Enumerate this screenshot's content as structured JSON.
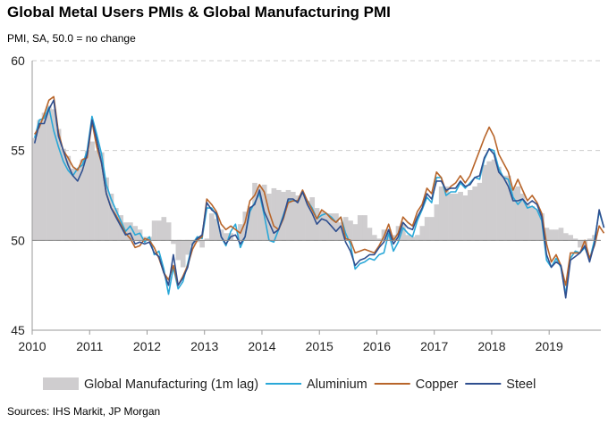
{
  "header": {
    "title": "Global Metal Users PMIs & Global Manufacturing PMI",
    "subtitle": "PMI, SA, 50.0 = no change"
  },
  "footer": {
    "source": "Sources: IHS Markit, JP Morgan"
  },
  "chart_data": {
    "type": "line",
    "title": "Global Metal Users PMIs & Global Manufacturing PMI",
    "ylabel": "PMI, SA, 50.0 = no change",
    "xlabel": "",
    "xlim": [
      2010.0,
      2019.9
    ],
    "ylim": [
      45,
      60
    ],
    "baseline": 50,
    "y_ticks": [
      "45",
      "50",
      "55",
      "60"
    ],
    "x_ticks": [
      "2010",
      "2011",
      "2012",
      "2013",
      "2014",
      "2015",
      "2016",
      "2017",
      "2018",
      "2019"
    ],
    "grid": "horizontal dashed",
    "legend_position": "bottom",
    "colors": {
      "Global Manufacturing (1m lag)": "#cfcdcf",
      "Aluminium": "#2aa8d8",
      "Copper": "#b8652a",
      "Steel": "#2f4f8f"
    },
    "bars": {
      "name": "Global Manufacturing (1m lag)",
      "x_start": 2010.0,
      "step": 0.0833,
      "values": [
        55.7,
        56.7,
        57.1,
        57.5,
        57.3,
        56.2,
        55.1,
        54.7,
        54.0,
        54.0,
        54.5,
        55.0,
        55.5,
        55.0,
        54.9,
        53.5,
        52.6,
        51.8,
        51.4,
        51.0,
        51.0,
        50.8,
        50.6,
        50.2,
        50.2,
        51.1,
        51.1,
        51.3,
        51.0,
        49.8,
        48.9,
        48.5,
        49.2,
        49.7,
        49.9,
        49.6,
        50.1,
        51.5,
        51.2,
        50.6,
        50.4,
        50.4,
        50.0,
        50.9,
        51.6,
        51.9,
        53.2,
        53.0,
        53.1,
        52.6,
        52.9,
        52.8,
        52.7,
        52.8,
        52.7,
        52.5,
        52.6,
        52.2,
        52.4,
        51.8,
        51.6,
        51.5,
        51.5,
        51.5,
        51.0,
        51.3,
        51.1,
        50.9,
        51.4,
        51.4,
        50.7,
        50.3,
        50.1,
        50.6,
        50.6,
        50.3,
        50.8,
        50.9,
        50.3,
        50.2,
        50.3,
        50.8,
        51.3,
        51.3,
        52.0,
        53.0,
        53.0,
        52.6,
        52.6,
        52.7,
        52.5,
        52.8,
        53.0,
        53.2,
        54.2,
        54.4,
        54.5,
        54.1,
        53.6,
        53.6,
        52.9,
        53.0,
        52.6,
        52.0,
        51.9,
        51.7,
        51.5,
        50.7,
        50.6,
        50.6,
        50.7,
        50.4,
        50.3,
        50.1,
        49.6,
        49.7,
        50.1,
        50.3
      ]
    },
    "series": [
      {
        "name": "Aluminium",
        "x_start": 2010.0,
        "step": 0.0833,
        "values": [
          55.7,
          56.7,
          56.8,
          57.4,
          56.1,
          55.2,
          54.4,
          53.9,
          53.6,
          54.0,
          54.2,
          55.0,
          56.9,
          55.9,
          54.8,
          53.1,
          52.3,
          51.7,
          51.1,
          50.5,
          50.8,
          50.3,
          50.4,
          49.9,
          50.2,
          49.2,
          49.4,
          48.4,
          47.0,
          48.5,
          47.3,
          47.7,
          48.7,
          49.8,
          50.2,
          50.1,
          51.8,
          51.8,
          51.4,
          50.2,
          49.7,
          50.5,
          50.9,
          49.6,
          50.2,
          51.6,
          52.1,
          52.6,
          51.4,
          50.0,
          49.9,
          50.6,
          51.4,
          52.2,
          52.2,
          52.2,
          52.7,
          52.2,
          51.8,
          51.2,
          51.4,
          51.5,
          51.3,
          51.0,
          51.3,
          50.4,
          49.8,
          48.4,
          48.7,
          48.8,
          49.0,
          48.9,
          49.2,
          49.3,
          50.4,
          49.4,
          49.9,
          50.7,
          50.4,
          50.2,
          51.1,
          51.7,
          52.4,
          52.1,
          53.5,
          53.5,
          52.5,
          52.7,
          52.7,
          53.2,
          52.9,
          53.2,
          53.5,
          53.4,
          54.5,
          55.1,
          55.0,
          54.0,
          53.5,
          53.4,
          52.4,
          52.0,
          52.3,
          51.8,
          51.9,
          51.7,
          51.1,
          48.9,
          48.5,
          49.0,
          48.5,
          47.0,
          49.0,
          49.4,
          49.3,
          49.6,
          48.9,
          50.0,
          51.6,
          50.7
        ]
      },
      {
        "name": "Copper",
        "x_start": 2010.0,
        "step": 0.0833,
        "values": [
          55.9,
          56.3,
          57.0,
          57.8,
          58.0,
          56.0,
          55.0,
          54.6,
          54.1,
          53.9,
          54.5,
          54.6,
          56.6,
          55.2,
          54.3,
          52.6,
          51.8,
          51.4,
          50.9,
          50.4,
          50.1,
          49.6,
          49.7,
          50.1,
          50.0,
          49.6,
          49.0,
          48.2,
          47.8,
          48.6,
          47.5,
          48.0,
          48.6,
          49.5,
          50.0,
          50.2,
          52.3,
          52.0,
          51.6,
          50.9,
          50.6,
          50.8,
          50.6,
          50.4,
          51.0,
          52.2,
          52.5,
          53.1,
          52.7,
          51.6,
          50.8,
          50.6,
          51.2,
          52.1,
          52.2,
          52.2,
          52.8,
          52.2,
          51.7,
          51.2,
          51.7,
          51.5,
          51.2,
          51.0,
          51.3,
          50.1,
          50.0,
          49.3,
          49.4,
          49.5,
          49.4,
          49.3,
          49.7,
          50.2,
          50.9,
          50.0,
          50.4,
          51.3,
          51.0,
          50.8,
          51.6,
          52.0,
          52.9,
          52.6,
          53.8,
          53.5,
          52.7,
          53.0,
          53.2,
          53.6,
          53.2,
          53.6,
          54.3,
          55.0,
          55.7,
          56.3,
          55.8,
          54.8,
          54.3,
          53.8,
          52.8,
          53.4,
          52.8,
          52.2,
          52.5,
          52.1,
          51.5,
          49.8,
          48.8,
          49.2,
          48.6,
          47.5,
          49.3,
          49.3,
          49.3,
          50.0,
          49.0,
          49.7,
          50.8,
          50.4
        ]
      },
      {
        "name": "Steel",
        "x_start": 2010.0,
        "step": 0.0833,
        "values": [
          55.4,
          56.5,
          56.5,
          57.3,
          57.8,
          55.8,
          55.0,
          54.2,
          53.6,
          53.3,
          53.9,
          54.8,
          56.7,
          55.6,
          54.3,
          52.6,
          51.8,
          51.3,
          50.8,
          50.3,
          50.4,
          49.8,
          49.9,
          49.8,
          49.9,
          49.3,
          49.1,
          48.2,
          47.5,
          49.2,
          47.5,
          47.9,
          48.5,
          49.8,
          50.1,
          50.3,
          52.1,
          51.7,
          51.5,
          50.2,
          49.8,
          50.2,
          50.3,
          49.8,
          50.2,
          51.8,
          52.0,
          52.8,
          51.6,
          51.0,
          50.4,
          50.6,
          51.3,
          52.3,
          52.3,
          52.1,
          52.7,
          52.0,
          51.5,
          50.9,
          51.2,
          51.1,
          50.8,
          50.5,
          50.8,
          49.9,
          49.4,
          48.6,
          48.9,
          49.0,
          49.2,
          49.2,
          49.6,
          49.9,
          50.6,
          49.8,
          50.2,
          51.0,
          50.7,
          50.6,
          51.3,
          51.8,
          52.6,
          52.3,
          53.3,
          53.3,
          52.8,
          52.9,
          52.9,
          53.3,
          53.0,
          53.1,
          53.5,
          53.6,
          54.6,
          55.1,
          54.8,
          53.8,
          53.5,
          53.0,
          52.2,
          52.2,
          52.3,
          52.0,
          52.2,
          52.0,
          51.3,
          49.2,
          48.5,
          48.8,
          48.6,
          46.8,
          48.9,
          49.1,
          49.3,
          49.7,
          48.8,
          49.8,
          51.7,
          50.7
        ]
      }
    ]
  }
}
